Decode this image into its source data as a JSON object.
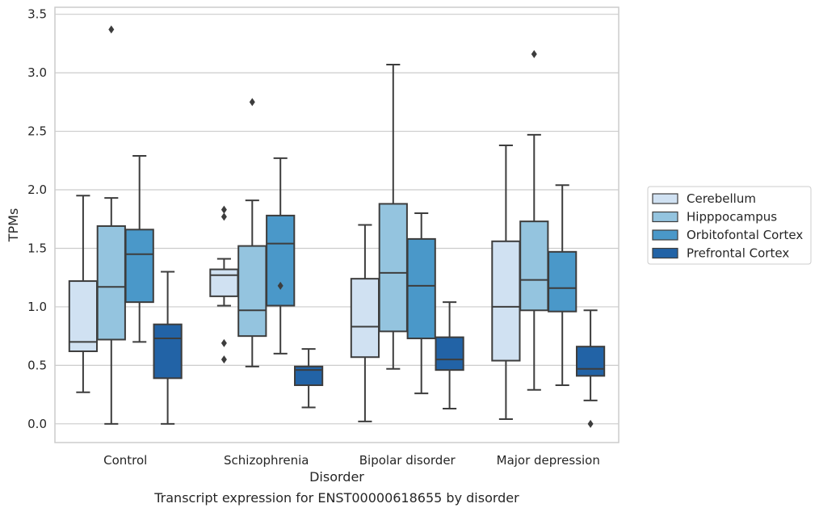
{
  "chart_data": {
    "type": "box",
    "xlabel": "Disorder",
    "ylabel": "TPMs",
    "caption": "Transcript expression for ENST00000618655 by disorder",
    "ylim": [
      -0.16,
      3.56
    ],
    "yticks": [
      0.0,
      0.5,
      1.0,
      1.5,
      2.0,
      2.5,
      3.0,
      3.5
    ],
    "ytick_labels": [
      "0.0",
      "0.5",
      "1.0",
      "1.5",
      "2.0",
      "2.5",
      "3.0",
      "3.5"
    ],
    "grid": "horizontal",
    "legend_placement": "right",
    "categories": [
      "Control",
      "Schizophrenia",
      "Bipolar disorder",
      "Major depression"
    ],
    "series": [
      {
        "name": "Cerebellum",
        "color": "#d0e1f2",
        "boxes": [
          {
            "whislo": 0.27,
            "q1": 0.62,
            "med": 0.7,
            "q3": 1.22,
            "whishi": 1.95,
            "fliers": []
          },
          {
            "whislo": 1.01,
            "q1": 1.09,
            "med": 1.27,
            "q3": 1.32,
            "whishi": 1.41,
            "fliers": [
              1.83,
              1.77,
              0.69,
              0.55
            ]
          },
          {
            "whislo": 0.02,
            "q1": 0.57,
            "med": 0.83,
            "q3": 1.24,
            "whishi": 1.7,
            "fliers": []
          },
          {
            "whislo": 0.04,
            "q1": 0.54,
            "med": 1.0,
            "q3": 1.56,
            "whishi": 2.38,
            "fliers": []
          }
        ]
      },
      {
        "name": "Hipppocampus",
        "color": "#94c4df",
        "boxes": [
          {
            "whislo": 0.0,
            "q1": 0.72,
            "med": 1.17,
            "q3": 1.69,
            "whishi": 1.93,
            "fliers": [
              3.37
            ]
          },
          {
            "whislo": 0.49,
            "q1": 0.75,
            "med": 0.97,
            "q3": 1.52,
            "whishi": 1.91,
            "fliers": [
              2.75
            ]
          },
          {
            "whislo": 0.47,
            "q1": 0.79,
            "med": 1.29,
            "q3": 1.88,
            "whishi": 3.07,
            "fliers": []
          },
          {
            "whislo": 0.29,
            "q1": 0.97,
            "med": 1.23,
            "q3": 1.73,
            "whishi": 2.47,
            "fliers": [
              3.16
            ]
          }
        ]
      },
      {
        "name": "Orbitofontal Cortex",
        "color": "#4a98c9",
        "boxes": [
          {
            "whislo": 0.7,
            "q1": 1.04,
            "med": 1.45,
            "q3": 1.66,
            "whishi": 2.29,
            "fliers": []
          },
          {
            "whislo": 0.6,
            "q1": 1.01,
            "med": 1.54,
            "q3": 1.78,
            "whishi": 2.27,
            "fliers": [
              1.18
            ]
          },
          {
            "whislo": 0.26,
            "q1": 0.73,
            "med": 1.18,
            "q3": 1.58,
            "whishi": 1.8,
            "fliers": []
          },
          {
            "whislo": 0.33,
            "q1": 0.96,
            "med": 1.16,
            "q3": 1.47,
            "whishi": 2.04,
            "fliers": []
          }
        ]
      },
      {
        "name": "Prefrontal Cortex",
        "color": "#2263a6",
        "boxes": [
          {
            "whislo": 0.0,
            "q1": 0.39,
            "med": 0.73,
            "q3": 0.85,
            "whishi": 1.3,
            "fliers": []
          },
          {
            "whislo": 0.14,
            "q1": 0.33,
            "med": 0.46,
            "q3": 0.49,
            "whishi": 0.64,
            "fliers": []
          },
          {
            "whislo": 0.13,
            "q1": 0.46,
            "med": 0.55,
            "q3": 0.74,
            "whishi": 1.04,
            "fliers": []
          },
          {
            "whislo": 0.2,
            "q1": 0.41,
            "med": 0.47,
            "q3": 0.66,
            "whishi": 0.97,
            "fliers": [
              0.0
            ]
          }
        ]
      }
    ]
  }
}
